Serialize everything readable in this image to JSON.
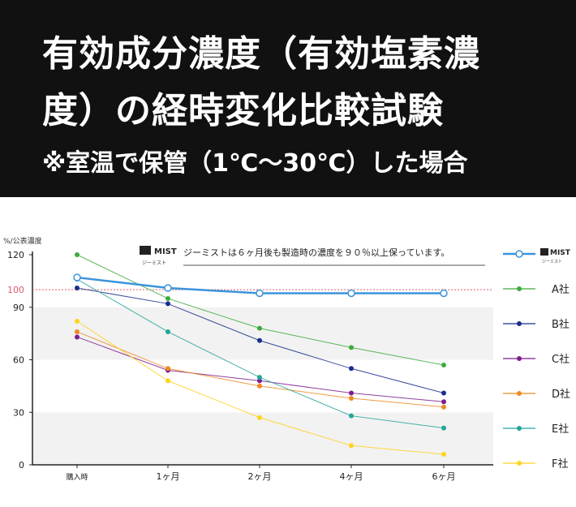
{
  "header": {
    "title_line1": "有効成分濃度（有効塩素濃",
    "title_line2": "度）の経時変化比較試験",
    "subtitle": "※室温で保管（1℃〜30℃）した場合"
  },
  "chart_data": {
    "type": "line",
    "ylabel": "%/公表濃度",
    "categories": [
      "購入時",
      "1ヶ月",
      "2ヶ月",
      "4ヶ月",
      "6ヶ月"
    ],
    "ylim": [
      0,
      120
    ],
    "yticks": [
      0,
      30,
      60,
      90,
      120
    ],
    "reference_line": {
      "value": 100,
      "label": "100",
      "color": "#e05a6e"
    },
    "grid": "horizontal bands",
    "legend_position": "right",
    "note_logo": {
      "brand": "MIST",
      "sub": "ジーミスト"
    },
    "note_text": "ジーミストは６ヶ月後も製造時の濃度を９０％以上保っています。",
    "series": [
      {
        "name": "MIST",
        "color": "#3a94dc",
        "highlight": true,
        "values": [
          107,
          101,
          98,
          98,
          98
        ]
      },
      {
        "name": "A社",
        "color": "#3cab3c",
        "values": [
          120,
          95,
          78,
          67,
          57
        ]
      },
      {
        "name": "B社",
        "color": "#1a2e8c",
        "values": [
          101,
          92,
          71,
          55,
          41
        ]
      },
      {
        "name": "C社",
        "color": "#7b1e8e",
        "values": [
          73,
          54,
          48,
          41,
          36
        ]
      },
      {
        "name": "D社",
        "color": "#ef8a22",
        "values": [
          76,
          55,
          45,
          38,
          33
        ]
      },
      {
        "name": "E社",
        "color": "#22a59a",
        "values": [
          106,
          76,
          50,
          28,
          21
        ]
      },
      {
        "name": "F社",
        "color": "#ffd21f",
        "values": [
          82,
          48,
          27,
          11,
          6
        ]
      }
    ]
  }
}
